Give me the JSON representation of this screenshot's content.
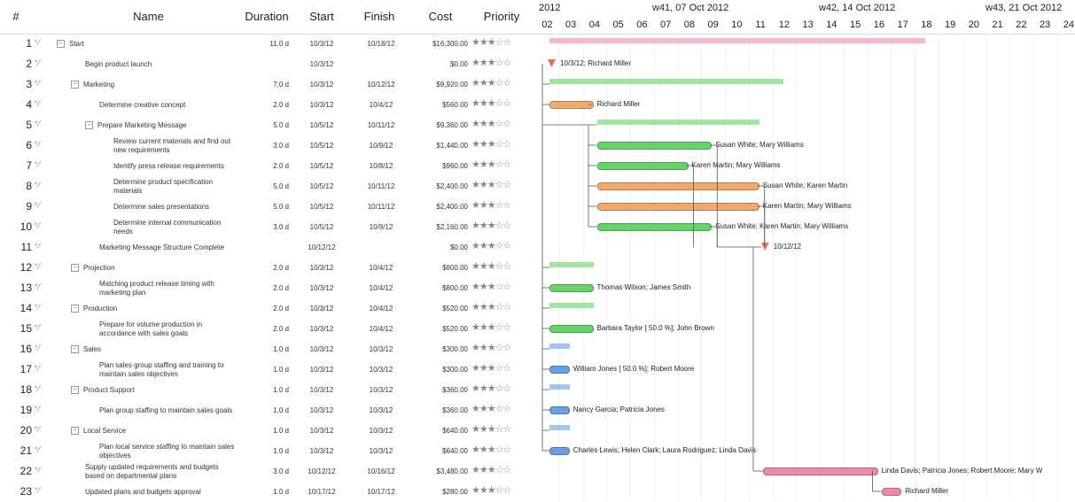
{
  "header": {
    "num": "#",
    "name": "Name",
    "duration": "Duration",
    "start": "Start",
    "finish": "Finish",
    "cost": "Cost",
    "priority": "Priority"
  },
  "gantt_header": {
    "weeks": [
      "2012",
      "w41, 07 Oct 2012",
      "w42, 14 Oct 2012",
      "w43, 21 Oct 2012"
    ],
    "days": [
      "02",
      "03",
      "04",
      "05",
      "06",
      "07",
      "08",
      "09",
      "10",
      "11",
      "12",
      "13",
      "14",
      "15",
      "16",
      "17",
      "18",
      "19",
      "20",
      "21",
      "22",
      "23",
      "24"
    ]
  },
  "colors": {
    "orange": "#f2a96a",
    "green": "#66d36b",
    "blue": "#6a9ee6",
    "pink": "#ef88a8",
    "red": "#ee6a5a"
  },
  "tasks": [
    {
      "num": "1",
      "name": "Start",
      "indent": 0,
      "group": true,
      "duration": "11.0 d",
      "start": "10/3/12",
      "finish": "10/18/12",
      "cost": "$16,300.00",
      "priority": "★★★☆☆"
    },
    {
      "num": "2",
      "name": "Begin product launch",
      "indent": 1,
      "group": false,
      "duration": "",
      "start": "10/3/12",
      "finish": "",
      "cost": "$0.00",
      "priority": "★★★☆☆"
    },
    {
      "num": "3",
      "name": "Marketing",
      "indent": 1,
      "group": true,
      "duration": "7.0 d",
      "start": "10/3/12",
      "finish": "10/12/12",
      "cost": "$9,920.00",
      "priority": "★★★☆☆"
    },
    {
      "num": "4",
      "name": "Determine creative concept",
      "indent": 2,
      "group": false,
      "duration": "2.0 d",
      "start": "10/3/12",
      "finish": "10/4/12",
      "cost": "$560.00",
      "priority": "★★★☆☆"
    },
    {
      "num": "5",
      "name": "Prepare Marketing Message",
      "indent": 2,
      "group": true,
      "duration": "5.0 d",
      "start": "10/5/12",
      "finish": "10/11/12",
      "cost": "$9,360.00",
      "priority": "★★★☆☆"
    },
    {
      "num": "6",
      "name": "Review current materials and find out new requirements",
      "indent": 3,
      "group": false,
      "duration": "3.0 d",
      "start": "10/5/12",
      "finish": "10/9/12",
      "cost": "$1,440.00",
      "priority": "★★★☆☆"
    },
    {
      "num": "7",
      "name": "Identify press release requirements",
      "indent": 3,
      "group": false,
      "duration": "2.0 d",
      "start": "10/5/12",
      "finish": "10/8/12",
      "cost": "$960.00",
      "priority": "★★★☆☆"
    },
    {
      "num": "8",
      "name": "Determine product specification materials",
      "indent": 3,
      "group": false,
      "duration": "5.0 d",
      "start": "10/5/12",
      "finish": "10/11/12",
      "cost": "$2,400.00",
      "priority": "★★★☆☆"
    },
    {
      "num": "9",
      "name": "Determine sales presentations",
      "indent": 3,
      "group": false,
      "duration": "5.0 d",
      "start": "10/5/12",
      "finish": "10/11/12",
      "cost": "$2,400.00",
      "priority": "★★★☆☆"
    },
    {
      "num": "10",
      "name": "Determine internal communication needs",
      "indent": 3,
      "group": false,
      "duration": "3.0 d",
      "start": "10/5/12",
      "finish": "10/9/12",
      "cost": "$2,160.00",
      "priority": "★★★☆☆"
    },
    {
      "num": "11",
      "name": "Marketing Message Structure Complete",
      "indent": 2,
      "group": false,
      "duration": "",
      "start": "10/12/12",
      "finish": "",
      "cost": "$0.00",
      "priority": "★★★☆☆"
    },
    {
      "num": "12",
      "name": "Projection",
      "indent": 1,
      "group": true,
      "duration": "2.0 d",
      "start": "10/3/12",
      "finish": "10/4/12",
      "cost": "$800.00",
      "priority": "★★★☆☆"
    },
    {
      "num": "13",
      "name": "Matching product release timing with marketing plan",
      "indent": 2,
      "group": false,
      "duration": "2.0 d",
      "start": "10/3/12",
      "finish": "10/4/12",
      "cost": "$800.00",
      "priority": "★★★☆☆"
    },
    {
      "num": "14",
      "name": "Production",
      "indent": 1,
      "group": true,
      "duration": "2.0 d",
      "start": "10/3/12",
      "finish": "10/4/12",
      "cost": "$520.00",
      "priority": "★★★☆☆"
    },
    {
      "num": "15",
      "name": "Prepare for volume production in accordance with sales goals",
      "indent": 2,
      "group": false,
      "duration": "2.0 d",
      "start": "10/3/12",
      "finish": "10/4/12",
      "cost": "$520.00",
      "priority": "★★★☆☆"
    },
    {
      "num": "16",
      "name": "Sales",
      "indent": 1,
      "group": true,
      "duration": "1.0 d",
      "start": "10/3/12",
      "finish": "10/3/12",
      "cost": "$300.00",
      "priority": "★★★☆☆"
    },
    {
      "num": "17",
      "name": "Plan sales group staffing and training to maintain sales objectives",
      "indent": 2,
      "group": false,
      "duration": "1.0 d",
      "start": "10/3/12",
      "finish": "10/3/12",
      "cost": "$300.00",
      "priority": "★★★☆☆"
    },
    {
      "num": "18",
      "name": "Product Support",
      "indent": 1,
      "group": true,
      "duration": "1.0 d",
      "start": "10/3/12",
      "finish": "10/3/12",
      "cost": "$360.00",
      "priority": "★★★☆☆"
    },
    {
      "num": "19",
      "name": "Plan group staffing to maintain sales goals",
      "indent": 2,
      "group": false,
      "duration": "1.0 d",
      "start": "10/3/12",
      "finish": "10/3/12",
      "cost": "$360.00",
      "priority": "★★★☆☆"
    },
    {
      "num": "20",
      "name": "Local Service",
      "indent": 1,
      "group": true,
      "duration": "1.0 d",
      "start": "10/3/12",
      "finish": "10/3/12",
      "cost": "$640.00",
      "priority": "★★★☆☆"
    },
    {
      "num": "21",
      "name": "Plan local service staffing to maintain sales objectives",
      "indent": 2,
      "group": false,
      "duration": "1.0 d",
      "start": "10/3/12",
      "finish": "10/3/12",
      "cost": "$640.00",
      "priority": "★★★☆☆"
    },
    {
      "num": "22",
      "name": "Supply updated requirements and budgets based on departmental plans",
      "indent": 1,
      "group": false,
      "duration": "3.0 d",
      "start": "10/12/12",
      "finish": "10/16/12",
      "cost": "$3,480.00",
      "priority": "★★★☆☆"
    },
    {
      "num": "23",
      "name": "Updated plans and budgets approval",
      "indent": 1,
      "group": false,
      "duration": "1.0 d",
      "start": "10/17/12",
      "finish": "10/17/12",
      "cost": "$280.00",
      "priority": "★★★☆☆"
    }
  ],
  "gantt": [
    {
      "kind": "summary",
      "color": "pink",
      "from": "10/3",
      "to": "10/18",
      "progress": 0.0,
      "label": ""
    },
    {
      "kind": "milestone",
      "color": "red",
      "from": "10/3",
      "label": "10/3/12; Richard Miller"
    },
    {
      "kind": "summary",
      "color": "green",
      "from": "10/3",
      "to": "10/12",
      "progress": 0.0,
      "label": ""
    },
    {
      "kind": "task",
      "color": "orange",
      "from": "10/3",
      "to": "10/4",
      "label": "Richard Miller"
    },
    {
      "kind": "summary",
      "color": "green",
      "from": "10/5",
      "to": "10/11",
      "progress": 0.0,
      "label": ""
    },
    {
      "kind": "task",
      "color": "green",
      "from": "10/5",
      "to": "10/9",
      "label": "Susan White; Mary Williams"
    },
    {
      "kind": "task",
      "color": "green",
      "from": "10/5",
      "to": "10/8",
      "label": "Karen Martin; Mary Williams"
    },
    {
      "kind": "task",
      "color": "orange",
      "from": "10/5",
      "to": "10/11",
      "label": "Susan White; Karen Martin"
    },
    {
      "kind": "task",
      "color": "orange",
      "from": "10/5",
      "to": "10/11",
      "label": "Karen Martin; Mary Williams"
    },
    {
      "kind": "task",
      "color": "green",
      "from": "10/5",
      "to": "10/9",
      "label": "Susan White; Karen Martin; Mary Williams"
    },
    {
      "kind": "milestone",
      "color": "red",
      "from": "10/12",
      "label": "10/12/12"
    },
    {
      "kind": "summary",
      "color": "green",
      "from": "10/3",
      "to": "10/4",
      "progress": 0.0,
      "label": ""
    },
    {
      "kind": "task",
      "color": "green",
      "from": "10/3",
      "to": "10/4",
      "label": "Thomas Wilson; James Smith"
    },
    {
      "kind": "summary",
      "color": "green",
      "from": "10/3",
      "to": "10/4",
      "progress": 0.0,
      "label": ""
    },
    {
      "kind": "task",
      "color": "green",
      "from": "10/3",
      "to": "10/4",
      "label": "Barbara Taylor [ 50.0 %]; John Brown"
    },
    {
      "kind": "summary",
      "color": "blue",
      "from": "10/3",
      "to": "10/3",
      "progress": 0.0,
      "label": ""
    },
    {
      "kind": "task",
      "color": "blue",
      "from": "10/3",
      "to": "10/3",
      "label": "William Jones [ 50.0 %]; Robert Moore"
    },
    {
      "kind": "summary",
      "color": "blue",
      "from": "10/3",
      "to": "10/3",
      "progress": 0.0,
      "label": ""
    },
    {
      "kind": "task",
      "color": "blue",
      "from": "10/3",
      "to": "10/3",
      "label": "Nancy Garcia; Patricia Jones"
    },
    {
      "kind": "summary",
      "color": "blue",
      "from": "10/3",
      "to": "10/3",
      "progress": 0.0,
      "label": ""
    },
    {
      "kind": "task",
      "color": "blue",
      "from": "10/3",
      "to": "10/3",
      "label": "Charles Lewis; Helen Clark; Laura Rodriguez; Linda Davis"
    },
    {
      "kind": "task",
      "color": "pink",
      "from": "10/12",
      "to": "10/16",
      "label": "Linda Davis; Patricia Jones; Robert Moore; Mary W"
    },
    {
      "kind": "task",
      "color": "pink",
      "from": "10/17",
      "to": "10/17",
      "label": "Richard Miller"
    }
  ]
}
